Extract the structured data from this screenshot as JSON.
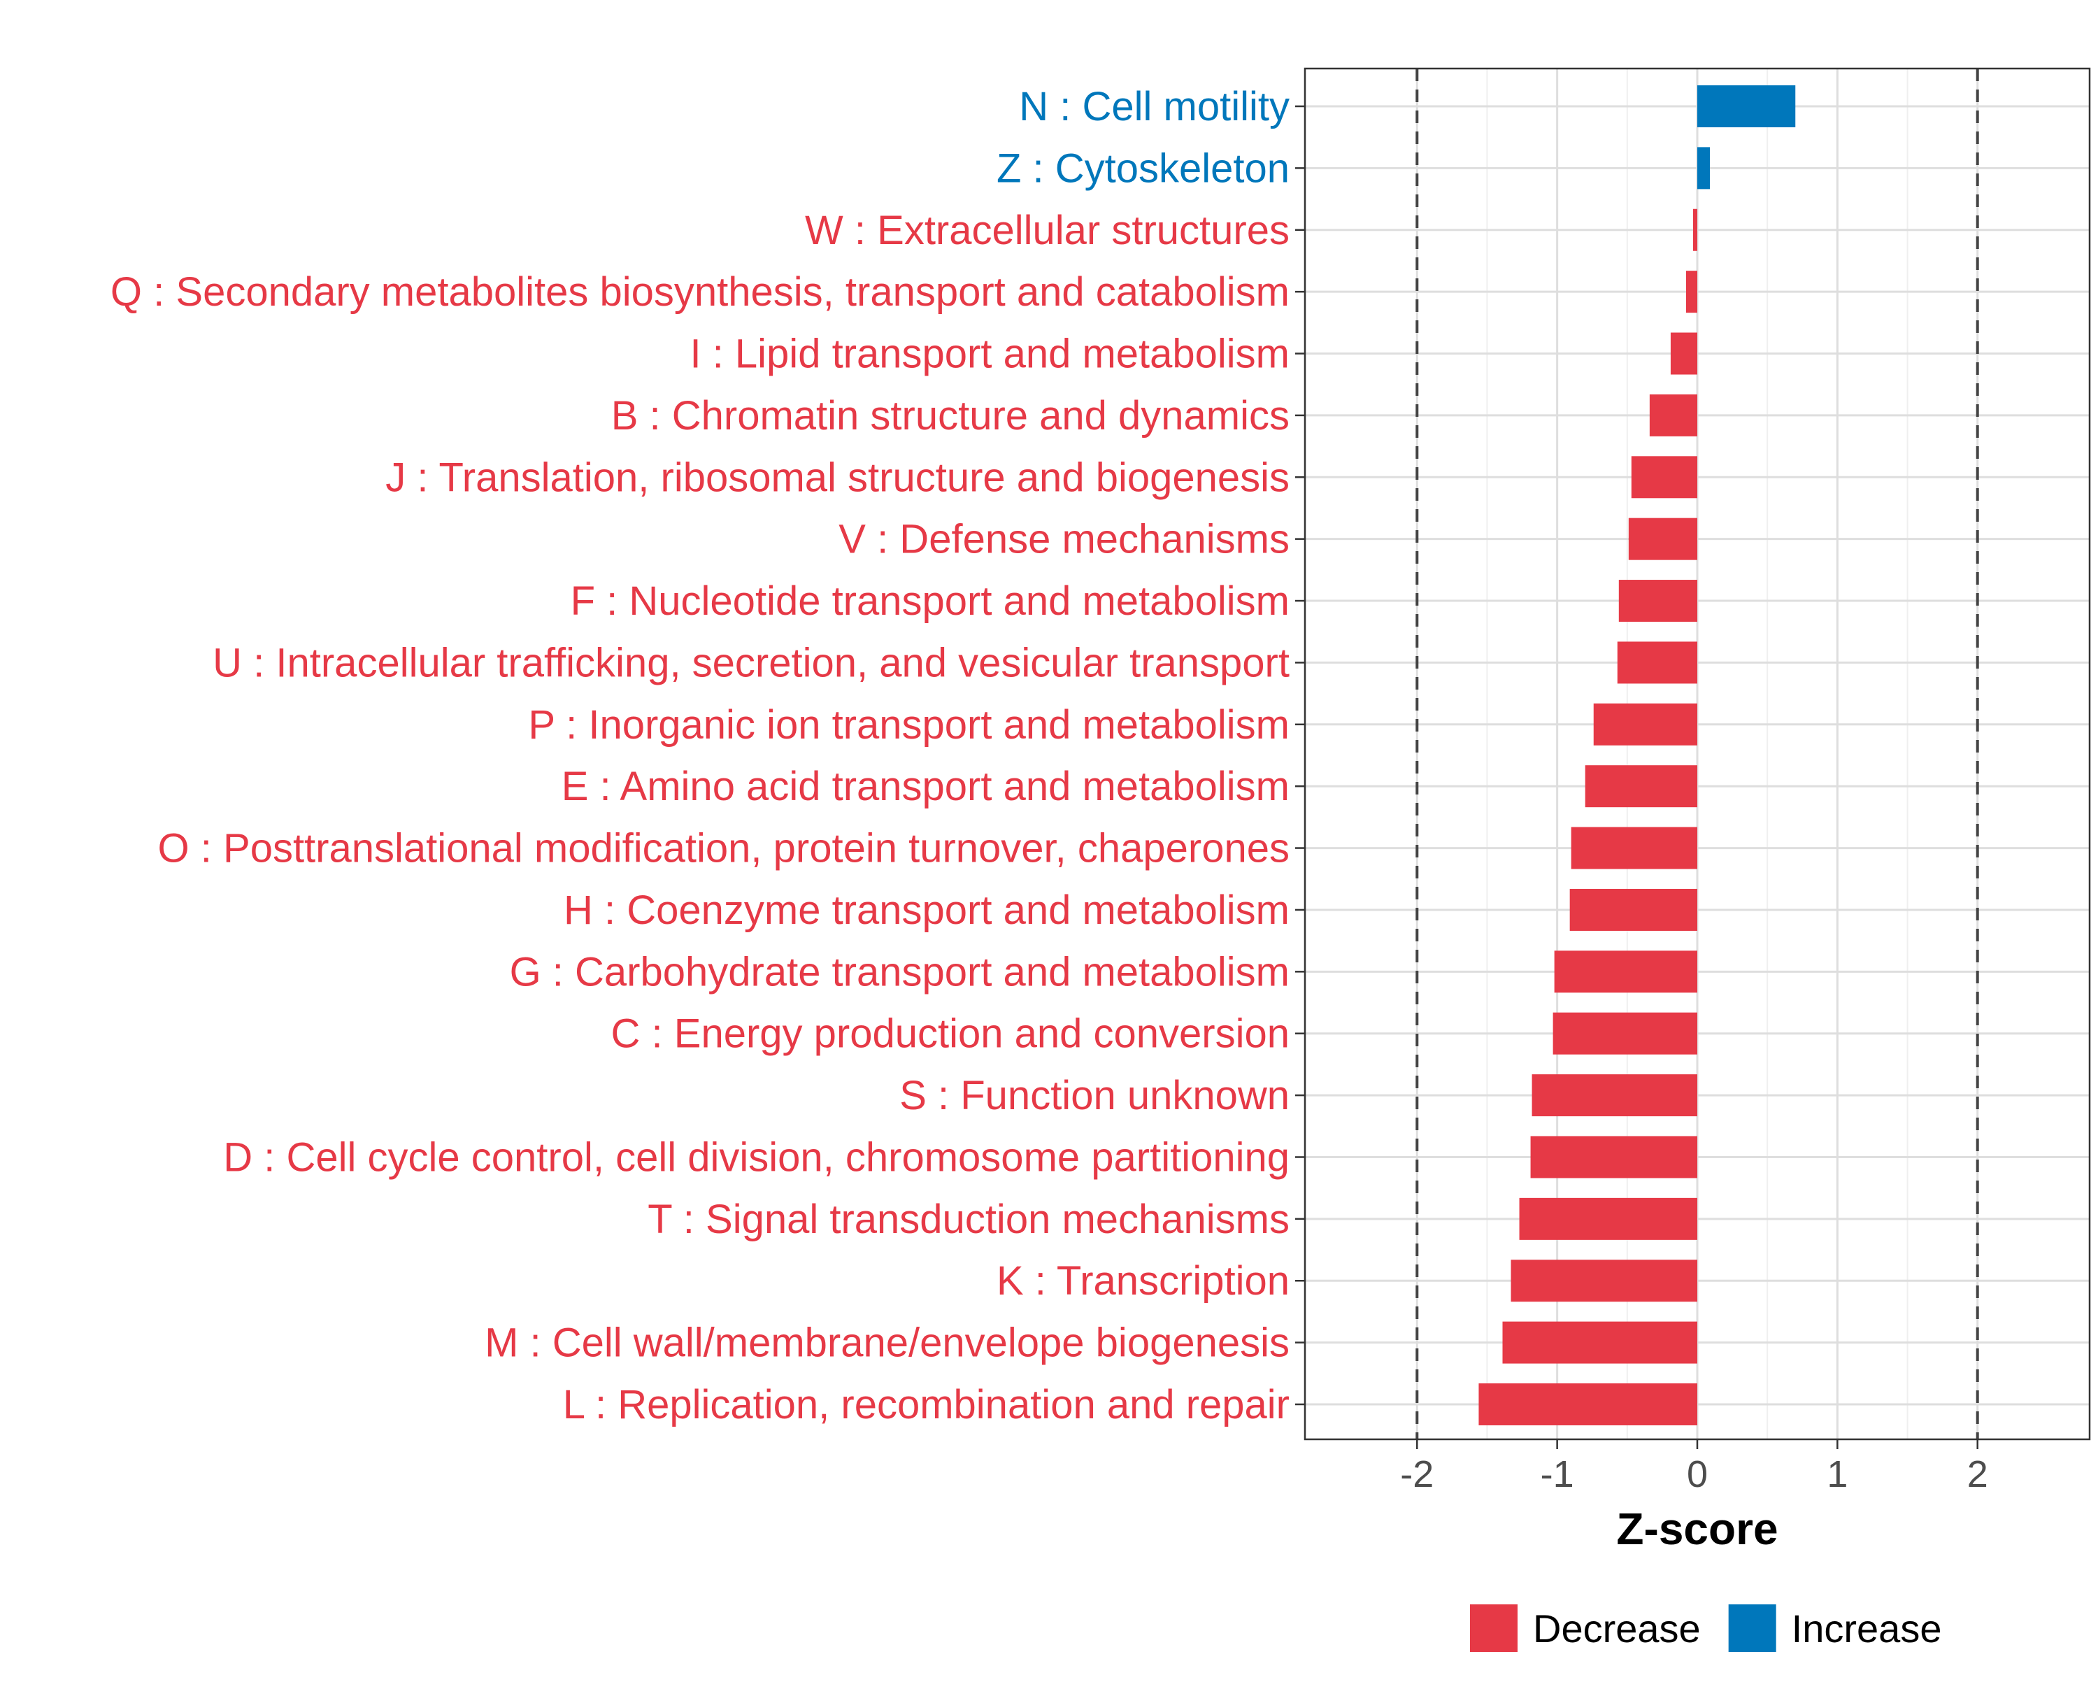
{
  "chart_data": {
    "type": "bar",
    "orientation": "horizontal",
    "title": "",
    "xlabel": "Z-score",
    "ylabel": "",
    "xlim": [
      -2.8,
      2.8
    ],
    "x_ticks": [
      -2,
      -1,
      0,
      1,
      2
    ],
    "x_tick_labels": [
      "-2",
      "-1",
      "0",
      "1",
      "2"
    ],
    "reference_lines": [
      -2,
      2
    ],
    "grid": true,
    "legend_position": "bottom",
    "colors": {
      "Decrease": "#e63946",
      "Increase": "#0077bb"
    },
    "legend": [
      {
        "name": "Decrease",
        "color": "#e63946"
      },
      {
        "name": "Increase",
        "color": "#0077bb"
      }
    ],
    "categories": [
      "N : Cell motility",
      "Z : Cytoskeleton",
      "W : Extracellular structures",
      "Q : Secondary metabolites biosynthesis, transport and catabolism",
      "I : Lipid transport and metabolism",
      "B : Chromatin structure and dynamics",
      "J : Translation, ribosomal structure and biogenesis",
      "V : Defense mechanisms",
      "F : Nucleotide transport and metabolism",
      "U : Intracellular trafficking, secretion, and vesicular transport",
      "P : Inorganic ion transport and metabolism",
      "E : Amino acid transport and metabolism",
      "O : Posttranslational modification, protein turnover, chaperones",
      "H : Coenzyme transport and metabolism",
      "G : Carbohydrate transport and metabolism",
      "C : Energy production and conversion",
      "S : Function unknown",
      "D : Cell cycle control, cell division, chromosome partitioning",
      "T : Signal transduction mechanisms",
      "K : Transcription",
      "M : Cell wall/membrane/envelope biogenesis",
      "L : Replication, recombination and repair"
    ],
    "values": [
      0.7,
      0.09,
      -0.03,
      -0.08,
      -0.19,
      -0.34,
      -0.47,
      -0.49,
      -0.56,
      -0.57,
      -0.74,
      -0.8,
      -0.9,
      -0.91,
      -1.02,
      -1.03,
      -1.18,
      -1.19,
      -1.27,
      -1.33,
      -1.39,
      -1.56
    ],
    "groups": [
      "Increase",
      "Increase",
      "Decrease",
      "Decrease",
      "Decrease",
      "Decrease",
      "Decrease",
      "Decrease",
      "Decrease",
      "Decrease",
      "Decrease",
      "Decrease",
      "Decrease",
      "Decrease",
      "Decrease",
      "Decrease",
      "Decrease",
      "Decrease",
      "Decrease",
      "Decrease",
      "Decrease",
      "Decrease"
    ]
  }
}
